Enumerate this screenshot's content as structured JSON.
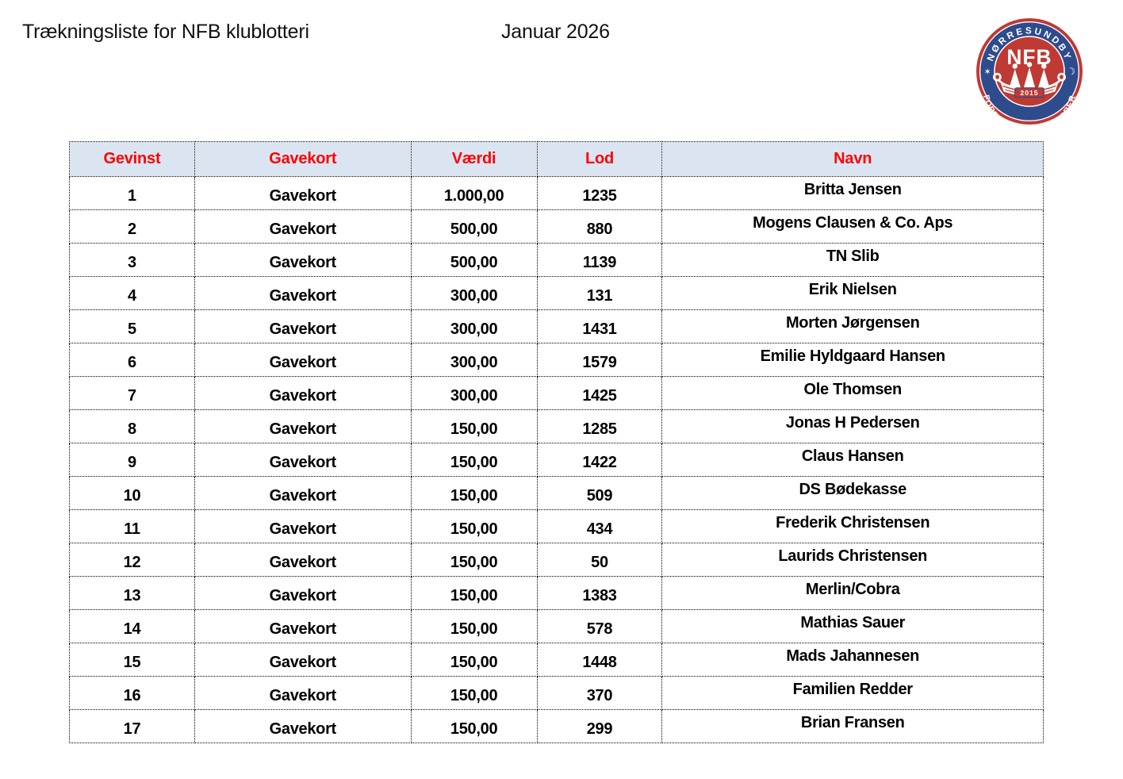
{
  "header": {
    "title": "Trækningsliste for NFB klublotteri",
    "date": "Januar 2026"
  },
  "logo": {
    "top_text": "NØRRESUNDBY",
    "bottom_text": "FORENEDE BOLDKLUBBER",
    "center_text": "NFB",
    "year": "2015",
    "star_glyph": "✶",
    "moon_glyph": "☽"
  },
  "colors": {
    "header-bg": "#dbe5f1",
    "header-text": "#ff0000",
    "body-text": "#000000",
    "logo-red": "#bf3a33",
    "logo-blue": "#2e4b8c",
    "border": "#000000",
    "page-bg": "#ffffff"
  },
  "table": {
    "columns": [
      "Gevinst",
      "Gavekort",
      "Værdi",
      "Lod",
      "Navn"
    ],
    "rows": [
      {
        "gevinst": "1",
        "gavekort": "Gavekort",
        "vaerdi": "1.000,00",
        "lod": "1235",
        "navn": "Britta Jensen"
      },
      {
        "gevinst": "2",
        "gavekort": "Gavekort",
        "vaerdi": "500,00",
        "lod": "880",
        "navn": "Mogens Clausen & Co. Aps"
      },
      {
        "gevinst": "3",
        "gavekort": "Gavekort",
        "vaerdi": "500,00",
        "lod": "1139",
        "navn": "TN Slib"
      },
      {
        "gevinst": "4",
        "gavekort": "Gavekort",
        "vaerdi": "300,00",
        "lod": "131",
        "navn": "Erik Nielsen"
      },
      {
        "gevinst": "5",
        "gavekort": "Gavekort",
        "vaerdi": "300,00",
        "lod": "1431",
        "navn": "Morten Jørgensen"
      },
      {
        "gevinst": "6",
        "gavekort": "Gavekort",
        "vaerdi": "300,00",
        "lod": "1579",
        "navn": "Emilie Hyldgaard Hansen"
      },
      {
        "gevinst": "7",
        "gavekort": "Gavekort",
        "vaerdi": "300,00",
        "lod": "1425",
        "navn": "Ole Thomsen"
      },
      {
        "gevinst": "8",
        "gavekort": "Gavekort",
        "vaerdi": "150,00",
        "lod": "1285",
        "navn": "Jonas H Pedersen"
      },
      {
        "gevinst": "9",
        "gavekort": "Gavekort",
        "vaerdi": "150,00",
        "lod": "1422",
        "navn": "Claus Hansen"
      },
      {
        "gevinst": "10",
        "gavekort": "Gavekort",
        "vaerdi": "150,00",
        "lod": "509",
        "navn": "DS Bødekasse"
      },
      {
        "gevinst": "11",
        "gavekort": "Gavekort",
        "vaerdi": "150,00",
        "lod": "434",
        "navn": "Frederik Christensen"
      },
      {
        "gevinst": "12",
        "gavekort": "Gavekort",
        "vaerdi": "150,00",
        "lod": "50",
        "navn": "Laurids Christensen"
      },
      {
        "gevinst": "13",
        "gavekort": "Gavekort",
        "vaerdi": "150,00",
        "lod": "1383",
        "navn": "Merlin/Cobra"
      },
      {
        "gevinst": "14",
        "gavekort": "Gavekort",
        "vaerdi": "150,00",
        "lod": "578",
        "navn": "Mathias Sauer"
      },
      {
        "gevinst": "15",
        "gavekort": "Gavekort",
        "vaerdi": "150,00",
        "lod": "1448",
        "navn": "Mads Jahannesen"
      },
      {
        "gevinst": "16",
        "gavekort": "Gavekort",
        "vaerdi": "150,00",
        "lod": "370",
        "navn": "Familien Redder"
      },
      {
        "gevinst": "17",
        "gavekort": "Gavekort",
        "vaerdi": "150,00",
        "lod": "299",
        "navn": "Brian Fransen"
      }
    ]
  }
}
